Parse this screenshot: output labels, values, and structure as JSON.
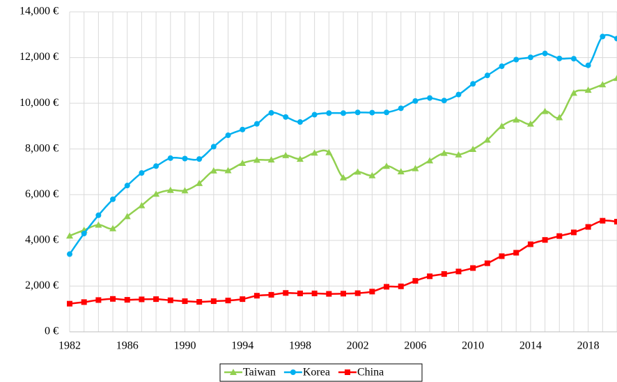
{
  "chart_data": {
    "type": "line",
    "smooth": true,
    "grid": true,
    "categories": [
      "1982",
      null,
      null,
      null,
      "1986",
      null,
      null,
      null,
      "1990",
      null,
      null,
      null,
      "1994",
      null,
      null,
      null,
      "1998",
      null,
      null,
      null,
      "2002",
      null,
      null,
      null,
      "2006",
      null,
      null,
      null,
      "2010",
      null,
      null,
      null,
      "2014",
      null,
      null,
      null,
      "2018",
      null,
      null
    ],
    "ylim": [
      0,
      14000
    ],
    "yticks": [
      {
        "value": 0,
        "label": "0 €"
      },
      {
        "value": 2000,
        "label": "2,000 €"
      },
      {
        "value": 4000,
        "label": "4,000 €"
      },
      {
        "value": 6000,
        "label": "6,000 €"
      },
      {
        "value": 8000,
        "label": "8,000 €"
      },
      {
        "value": 10000,
        "label": "10,000 €"
      },
      {
        "value": 12000,
        "label": "12,000 €"
      },
      {
        "value": 14000,
        "label": "14,000 €"
      }
    ],
    "series": [
      {
        "name": "Taiwan",
        "color": "#92d050",
        "marker": "triangle",
        "values": [
          4200,
          4450,
          4680,
          4520,
          5050,
          5530,
          6030,
          6200,
          6180,
          6500,
          7050,
          7060,
          7380,
          7520,
          7530,
          7720,
          7560,
          7830,
          7850,
          6750,
          7000,
          6840,
          7250,
          7010,
          7150,
          7490,
          7820,
          7750,
          7990,
          8400,
          9000,
          9280,
          9100,
          9650,
          9380,
          10450,
          10580,
          10820,
          11100
        ]
      },
      {
        "name": "Korea",
        "color": "#00b0f0",
        "marker": "circle",
        "values": [
          3400,
          4300,
          5100,
          5800,
          6400,
          6950,
          7250,
          7600,
          7580,
          7560,
          8100,
          8600,
          8850,
          9100,
          9580,
          9400,
          9180,
          9500,
          9570,
          9570,
          9600,
          9590,
          9600,
          9780,
          10100,
          10230,
          10120,
          10380,
          10850,
          11220,
          11620,
          11910,
          12010,
          12180,
          11960,
          11950,
          11660,
          12920,
          12830
        ]
      },
      {
        "name": "China",
        "color": "#ff0000",
        "marker": "square",
        "values": [
          1230,
          1300,
          1390,
          1440,
          1400,
          1420,
          1430,
          1380,
          1340,
          1310,
          1340,
          1370,
          1430,
          1580,
          1620,
          1700,
          1680,
          1680,
          1660,
          1670,
          1690,
          1760,
          1970,
          1990,
          2230,
          2430,
          2530,
          2640,
          2790,
          3000,
          3310,
          3460,
          3830,
          4020,
          4190,
          4350,
          4590,
          4860,
          4820
        ]
      }
    ]
  }
}
